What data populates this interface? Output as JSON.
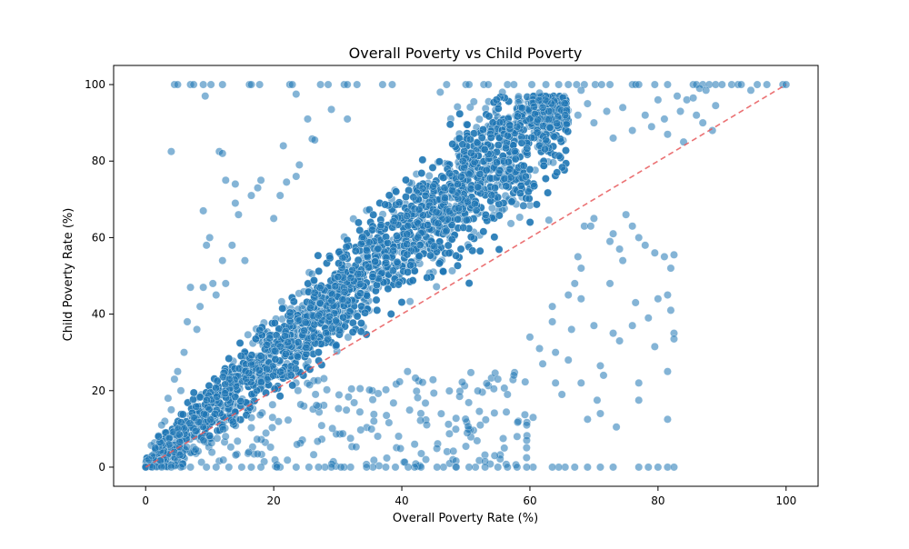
{
  "chart_data": {
    "type": "scatter",
    "title": "Overall Poverty vs Child Poverty",
    "xlabel": "Overall Poverty Rate (%)",
    "ylabel": "Child Poverty Rate (%)",
    "xlim": [
      -5,
      105
    ],
    "ylim": [
      -5,
      105
    ],
    "xticks": [
      0,
      20,
      40,
      60,
      80,
      100
    ],
    "yticks": [
      0,
      20,
      40,
      60,
      80,
      100
    ],
    "grid": false,
    "point_color": "#1f77b4",
    "point_alpha": 0.55,
    "reference_line": {
      "x": [
        0,
        100
      ],
      "y": [
        0,
        100
      ],
      "color": "#e8585a",
      "style": "dashed"
    },
    "points": [
      [
        4.5,
        100
      ],
      [
        5.0,
        100
      ],
      [
        7.0,
        100
      ],
      [
        7.5,
        100
      ],
      [
        9.0,
        100
      ],
      [
        10.2,
        100
      ],
      [
        12.0,
        100
      ],
      [
        16.2,
        100
      ],
      [
        16.5,
        100
      ],
      [
        17.8,
        100
      ],
      [
        22.5,
        100
      ],
      [
        22.9,
        100
      ],
      [
        27.3,
        100
      ],
      [
        28.5,
        100
      ],
      [
        31.0,
        100
      ],
      [
        31.5,
        100
      ],
      [
        33.0,
        100
      ],
      [
        37.0,
        100
      ],
      [
        38.5,
        100
      ],
      [
        47.0,
        100
      ],
      [
        50.0,
        100
      ],
      [
        50.5,
        100
      ],
      [
        52.8,
        100
      ],
      [
        53.5,
        100
      ],
      [
        56.5,
        100
      ],
      [
        57.5,
        100
      ],
      [
        60.3,
        100
      ],
      [
        62.5,
        100
      ],
      [
        64.5,
        100
      ],
      [
        66.0,
        100
      ],
      [
        67.3,
        100
      ],
      [
        68.5,
        100
      ],
      [
        70.2,
        100
      ],
      [
        71.2,
        100
      ],
      [
        72.5,
        100
      ],
      [
        76.0,
        100
      ],
      [
        76.5,
        100
      ],
      [
        77.0,
        100
      ],
      [
        79.5,
        100
      ],
      [
        81.5,
        100
      ],
      [
        85.5,
        100
      ],
      [
        86.0,
        100
      ],
      [
        87.0,
        100
      ],
      [
        88.0,
        100
      ],
      [
        89.0,
        100
      ],
      [
        90.0,
        100
      ],
      [
        91.5,
        100
      ],
      [
        92.5,
        100
      ],
      [
        93.0,
        100
      ],
      [
        95.5,
        100
      ],
      [
        97.0,
        100
      ],
      [
        99.5,
        100
      ],
      [
        100,
        100
      ],
      [
        9.3,
        97
      ],
      [
        23.5,
        97.5
      ],
      [
        46.0,
        98
      ],
      [
        55.7,
        98
      ],
      [
        61.5,
        97.8
      ],
      [
        68.0,
        98.5
      ],
      [
        86.5,
        99
      ],
      [
        87.5,
        98.5
      ],
      [
        94.5,
        98.5
      ],
      [
        4.0,
        82.5
      ],
      [
        11.5,
        82.5
      ],
      [
        12.0,
        82
      ],
      [
        21.5,
        84
      ],
      [
        26.0,
        85.8
      ],
      [
        26.4,
        85.5
      ],
      [
        12.5,
        75
      ],
      [
        14.0,
        74
      ],
      [
        29.0,
        93.5
      ],
      [
        25.3,
        91
      ],
      [
        31.5,
        91
      ],
      [
        62.0,
        94
      ],
      [
        67.5,
        92
      ],
      [
        69.0,
        95
      ],
      [
        72.0,
        93
      ],
      [
        74.5,
        94
      ],
      [
        78.0,
        92
      ],
      [
        81.0,
        91
      ],
      [
        83.5,
        93
      ],
      [
        84.5,
        96
      ],
      [
        86.0,
        92
      ],
      [
        87.0,
        90
      ],
      [
        89.0,
        94.5
      ],
      [
        80.0,
        96
      ],
      [
        83.0,
        97
      ],
      [
        85.5,
        96.5
      ],
      [
        81.5,
        87
      ],
      [
        84.0,
        85
      ],
      [
        88.5,
        88
      ],
      [
        79.0,
        89
      ],
      [
        76.0,
        88
      ],
      [
        70.0,
        90
      ],
      [
        73.0,
        86
      ],
      [
        65.5,
        92
      ],
      [
        60.0,
        91
      ],
      [
        58.0,
        89
      ],
      [
        9.0,
        67
      ],
      [
        10.0,
        60
      ],
      [
        9.5,
        58
      ],
      [
        13.5,
        58
      ],
      [
        15.5,
        54
      ],
      [
        14.5,
        66
      ],
      [
        14.0,
        69
      ],
      [
        16.5,
        71
      ],
      [
        17.5,
        73
      ],
      [
        18.0,
        75
      ],
      [
        21.0,
        71
      ],
      [
        23.5,
        76
      ],
      [
        24.0,
        79
      ],
      [
        22.0,
        74.5
      ],
      [
        20.0,
        65
      ],
      [
        12.0,
        54
      ],
      [
        10.5,
        48
      ],
      [
        9.0,
        47
      ],
      [
        8.5,
        42
      ],
      [
        7.0,
        47
      ],
      [
        6.5,
        38
      ],
      [
        8.0,
        36
      ],
      [
        11.0,
        45
      ],
      [
        12.5,
        48
      ],
      [
        6.0,
        30
      ],
      [
        5.0,
        25
      ],
      [
        4.5,
        23
      ],
      [
        5.5,
        20
      ],
      [
        3.5,
        18
      ],
      [
        3.0,
        12
      ],
      [
        2.0,
        8
      ],
      [
        1.5,
        5
      ],
      [
        1.0,
        3
      ],
      [
        0.5,
        2
      ],
      [
        0,
        0
      ],
      [
        2.5,
        11
      ],
      [
        4.0,
        15
      ],
      [
        68.5,
        63
      ],
      [
        69.5,
        63
      ],
      [
        70.0,
        65
      ],
      [
        73.0,
        61
      ],
      [
        72.5,
        59
      ],
      [
        74.0,
        57
      ],
      [
        74.5,
        54
      ],
      [
        75.0,
        66
      ],
      [
        76.0,
        63
      ],
      [
        77.0,
        60
      ],
      [
        78.0,
        58
      ],
      [
        79.5,
        56
      ],
      [
        81.0,
        55
      ],
      [
        82.0,
        52
      ],
      [
        82.5,
        55.5
      ],
      [
        67.5,
        55
      ],
      [
        68.0,
        52
      ],
      [
        67.0,
        48
      ],
      [
        66.0,
        45
      ],
      [
        68.0,
        44
      ],
      [
        70.0,
        37
      ],
      [
        73.0,
        35
      ],
      [
        74.0,
        33
      ],
      [
        76.0,
        37
      ],
      [
        78.5,
        39
      ],
      [
        80.0,
        44
      ],
      [
        81.5,
        45
      ],
      [
        82.0,
        41
      ],
      [
        82.5,
        35
      ],
      [
        82.5,
        33.5
      ],
      [
        79.5,
        31.5
      ],
      [
        73.5,
        10.5
      ],
      [
        71.0,
        14
      ],
      [
        69.0,
        12.5
      ],
      [
        70.5,
        17.5
      ],
      [
        68.0,
        22
      ],
      [
        71.0,
        26.5
      ],
      [
        71.5,
        24
      ],
      [
        77.0,
        22
      ],
      [
        77.0,
        17.5
      ],
      [
        81.5,
        12.5
      ],
      [
        81.5,
        25
      ],
      [
        76.5,
        43
      ],
      [
        72.5,
        48
      ],
      [
        63.5,
        38
      ],
      [
        64.0,
        30
      ],
      [
        62.0,
        27
      ],
      [
        64.0,
        22
      ],
      [
        65.0,
        19
      ],
      [
        60.5,
        13
      ],
      [
        59.5,
        11
      ],
      [
        59.5,
        7
      ],
      [
        58.0,
        8
      ],
      [
        56.0,
        5
      ],
      [
        54.5,
        3
      ],
      [
        53.0,
        1.5
      ],
      [
        56.5,
        19
      ],
      [
        55.0,
        23
      ],
      [
        57.5,
        24
      ],
      [
        60.0,
        34
      ],
      [
        61.5,
        31
      ],
      [
        66.0,
        28
      ],
      [
        66.5,
        36
      ],
      [
        63.5,
        42
      ],
      [
        80.0,
        0
      ],
      [
        81.5,
        0
      ],
      [
        82.5,
        0
      ],
      [
        78.5,
        0
      ],
      [
        77.0,
        0
      ],
      [
        73.0,
        0
      ],
      [
        71.0,
        0
      ],
      [
        69.0,
        0
      ],
      [
        67.0,
        0
      ],
      [
        65.5,
        0
      ],
      [
        64.5,
        0
      ],
      [
        63.5,
        0
      ],
      [
        60.5,
        0
      ],
      [
        59.5,
        0
      ],
      [
        58.0,
        0
      ],
      [
        56.5,
        0
      ],
      [
        55.0,
        0
      ],
      [
        53.0,
        0
      ],
      [
        51.5,
        0
      ],
      [
        50.5,
        0
      ],
      [
        48.5,
        0
      ],
      [
        46.5,
        0
      ],
      [
        45.5,
        0
      ],
      [
        43.0,
        0
      ],
      [
        42.0,
        0
      ],
      [
        41.0,
        0
      ],
      [
        39.0,
        0
      ],
      [
        37.5,
        0
      ],
      [
        35.5,
        0
      ],
      [
        34.5,
        0
      ],
      [
        32.0,
        0
      ],
      [
        31.0,
        0
      ],
      [
        30.5,
        0
      ],
      [
        29.0,
        0
      ],
      [
        28.0,
        0
      ],
      [
        27.0,
        0
      ],
      [
        25.5,
        0
      ],
      [
        23.5,
        0
      ],
      [
        21.0,
        0
      ],
      [
        20.5,
        0
      ],
      [
        18.0,
        0
      ],
      [
        16.5,
        0
      ],
      [
        15.0,
        0
      ],
      [
        13.0,
        0
      ],
      [
        11.0,
        0
      ],
      [
        9.5,
        0
      ],
      [
        7.0,
        0
      ],
      [
        5.5,
        0
      ],
      [
        4.0,
        0
      ],
      [
        2.5,
        0
      ],
      [
        1.0,
        0
      ]
    ]
  }
}
